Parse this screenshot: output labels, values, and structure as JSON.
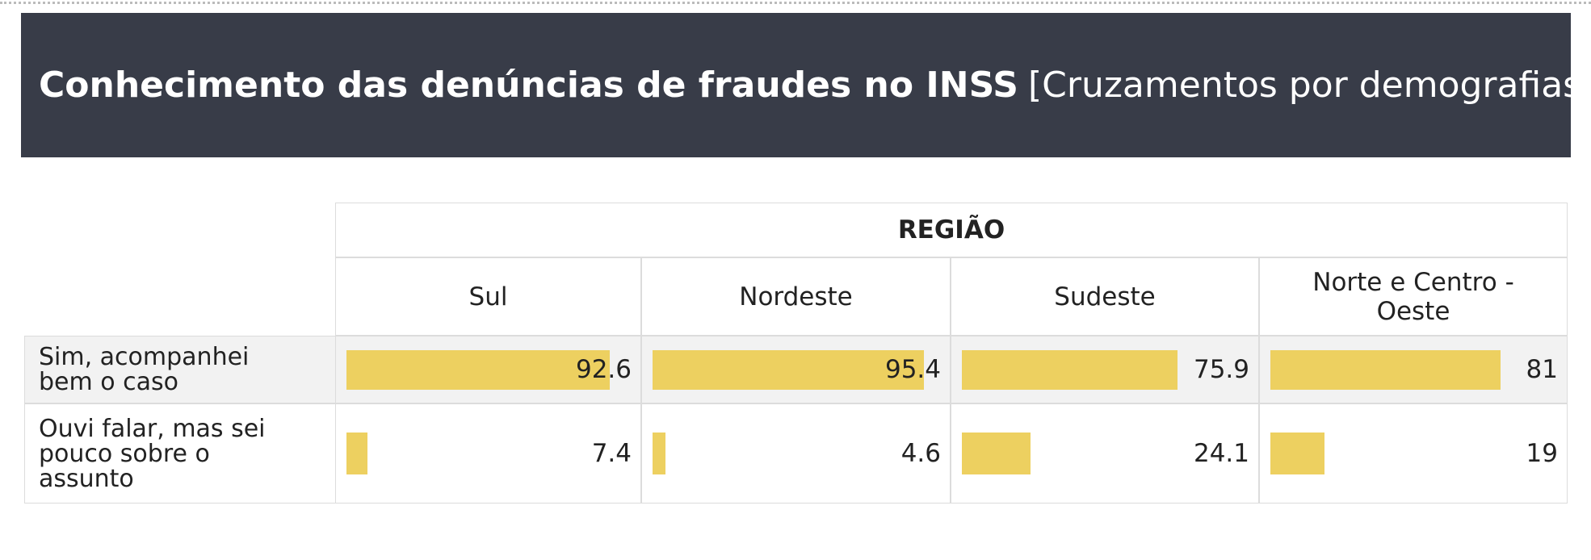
{
  "header": {
    "title": "Conhecimento das denúncias de fraudes no INSS",
    "subtitle": "[Cruzamentos por demografias]"
  },
  "table": {
    "group": "REGIÃO",
    "columns": [
      "Sul",
      "Nordeste",
      "Sudeste",
      "Norte e Centro - Oeste"
    ],
    "rows": [
      {
        "label": "Sim, acompanhei bem o caso",
        "values": [
          92.6,
          95.4,
          75.9,
          81
        ]
      },
      {
        "label": "Ouvi falar, mas sei pouco sobre o assunto",
        "values": [
          7.4,
          4.6,
          24.1,
          19
        ]
      }
    ],
    "bar_color": "#edd060"
  }
}
